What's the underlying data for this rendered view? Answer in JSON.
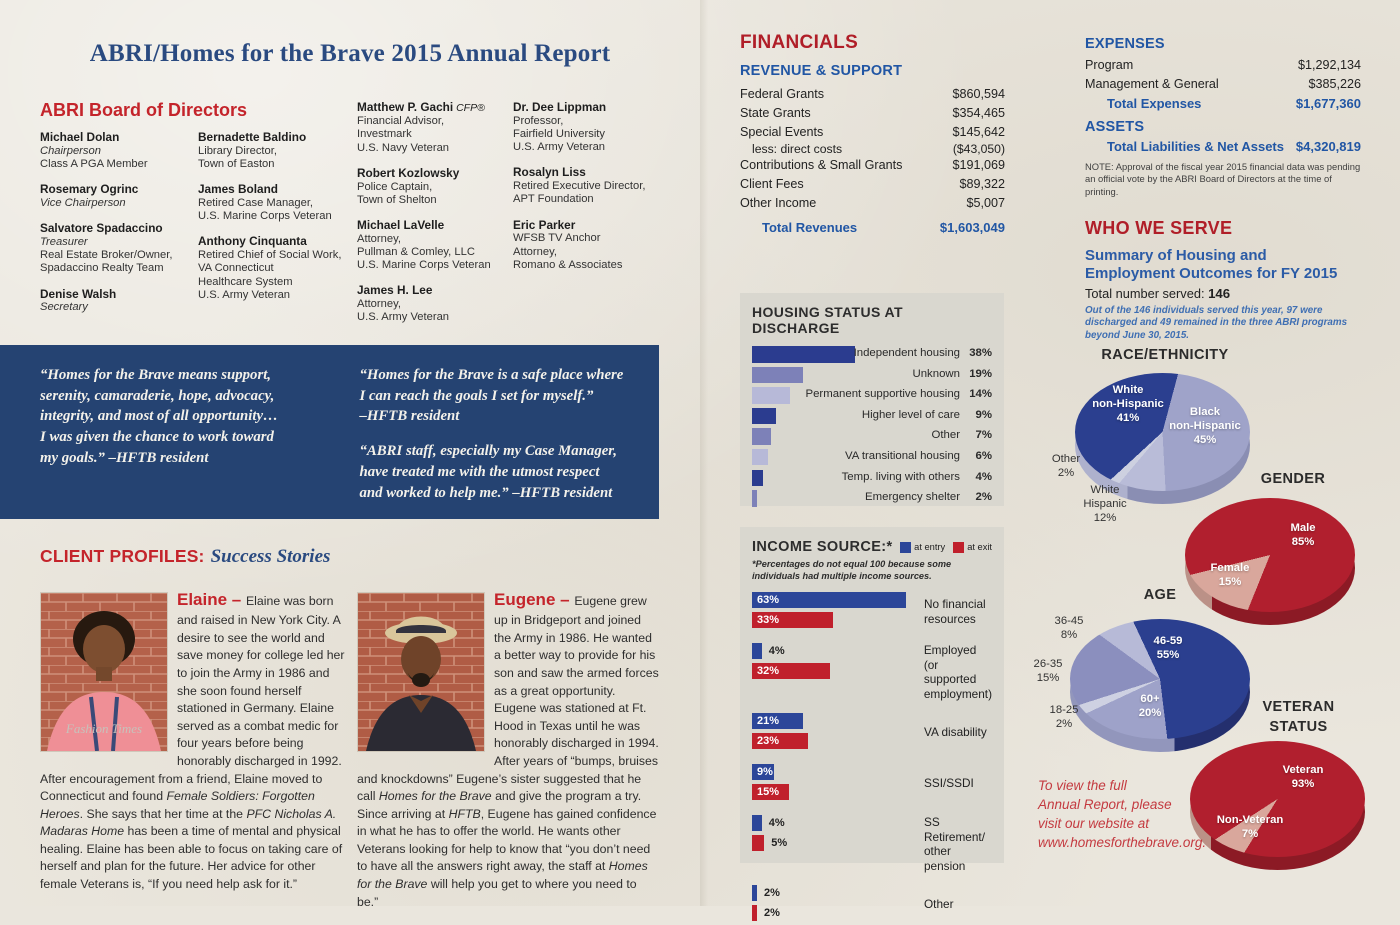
{
  "title": "ABRI/Homes for the Brave 2015 Annual Report",
  "colors": {
    "page_bg": "#eae6dd",
    "navy_box": "#254372",
    "title_blue": "#2a4a80",
    "heading_red": "#b01e28",
    "heading_blue": "#2156a4",
    "panel_bg": "#d9d7cf"
  },
  "board": {
    "heading": "ABRI Board of Directors",
    "columns": [
      [
        {
          "name": "Michael Dolan",
          "lines": [
            {
              "t": "Chairperson",
              "i": true
            },
            {
              "t": "Class A PGA Member"
            }
          ]
        },
        {
          "name": "Rosemary Ogrinc",
          "lines": [
            {
              "t": "Vice Chairperson",
              "i": true
            }
          ]
        },
        {
          "name": "Salvatore Spadaccino",
          "lines": [
            {
              "t": "Treasurer",
              "i": true
            },
            {
              "t": "Real Estate Broker/Owner,"
            },
            {
              "t": "Spadaccino Realty Team"
            }
          ]
        },
        {
          "name": "Denise Walsh",
          "lines": [
            {
              "t": "Secretary",
              "i": true
            }
          ]
        }
      ],
      [
        {
          "name": "Bernadette Baldino",
          "lines": [
            {
              "t": "Library Director,"
            },
            {
              "t": "Town of Easton"
            }
          ]
        },
        {
          "name": "James Boland",
          "lines": [
            {
              "t": "Retired Case Manager,"
            },
            {
              "t": "U.S. Marine Corps Veteran"
            }
          ]
        },
        {
          "name": "Anthony Cinquanta",
          "lines": [
            {
              "t": "Retired Chief of Social Work,"
            },
            {
              "t": "VA Connecticut"
            },
            {
              "t": "Healthcare System"
            },
            {
              "t": "U.S. Army Veteran"
            }
          ]
        }
      ],
      [
        {
          "name": "Matthew P. Gachi",
          "suffix": "CFP®",
          "lines": [
            {
              "t": "Financial Advisor,"
            },
            {
              "t": "Investmark"
            },
            {
              "t": "U.S. Navy Veteran"
            }
          ]
        },
        {
          "name": "Robert Kozlowsky",
          "lines": [
            {
              "t": "Police Captain,"
            },
            {
              "t": "Town of Shelton"
            }
          ]
        },
        {
          "name": "Michael LaVelle",
          "lines": [
            {
              "t": "Attorney,"
            },
            {
              "t": "Pullman & Comley, LLC"
            },
            {
              "t": "U.S. Marine Corps Veteran"
            }
          ]
        },
        {
          "name": "James H. Lee",
          "lines": [
            {
              "t": "Attorney,"
            },
            {
              "t": "U.S. Army Veteran"
            }
          ]
        }
      ],
      [
        {
          "name": "Dr. Dee Lippman",
          "lines": [
            {
              "t": "Professor,"
            },
            {
              "t": "Fairfield University"
            },
            {
              "t": "U.S. Army Veteran"
            }
          ]
        },
        {
          "name": "Rosalyn Liss",
          "lines": [
            {
              "t": "Retired Executive Director,"
            },
            {
              "t": "APT Foundation"
            }
          ]
        },
        {
          "name": "Eric Parker",
          "lines": [
            {
              "t": "WFSB TV Anchor"
            },
            {
              "t": "Attorney,"
            },
            {
              "t": "Romano & Associates"
            }
          ]
        }
      ]
    ]
  },
  "quotes": {
    "columns": [
      [
        "“Homes for the Brave means support,\nserenity, camaraderie, hope, advocacy,\nintegrity, and most of all opportunity…\nI was given the chance to work toward\nmy goals.” –HFTB resident"
      ],
      [
        "“Homes for the Brave is a safe place where\nI can reach the goals I set for myself.”\n–HFTB resident",
        "“ABRI staff, especially my Case Manager,\nhave treated me with the utmost respect\nand worked to help me.” –HFTB resident"
      ]
    ]
  },
  "profiles": {
    "heading_red": "CLIENT PROFILES:",
    "heading_italic": "Success Stories",
    "people": [
      {
        "name": "Elaine",
        "dash": "–",
        "segments": [
          {
            "t": "Elaine was born and raised in New York City. A desire to see the world and save money for college led her to join the Army in 1986 and she soon found herself stationed in Germany. Elaine served as a combat medic for four years before being honorably discharged in 1992. After encouragement from a friend, Elaine moved to Connecticut and found "
          },
          {
            "t": "Female Soldiers: Forgotten Heroes",
            "i": true
          },
          {
            "t": ". She says that her time at the "
          },
          {
            "t": "PFC Nicholas A. Madaras Home",
            "i": true
          },
          {
            "t": " has been a time of mental and physical healing. Elaine has been able to focus on taking care of herself and plan for the future. Her advice for other female Veterans is, “If you need help ask for it.”"
          }
        ]
      },
      {
        "name": "Eugene",
        "dash": "–",
        "segments": [
          {
            "t": "Eugene grew up in Bridgeport and joined the Army in 1986. He wanted a better way to provide for his son and saw the armed forces as a great opportunity. Eugene was stationed at Ft. Hood in Texas until he was honorably discharged in 1994. After years of “bumps, bruises and knockdowns” Eugene’s sister suggested that he call "
          },
          {
            "t": "Homes for the Brave",
            "i": true
          },
          {
            "t": " and give the program a try. Since arriving at "
          },
          {
            "t": "HFTB",
            "i": true
          },
          {
            "t": ", Eugene has gained confidence in what he has to offer the world. He wants other Veterans looking for help to know that “you don’t need to have all the answers right away, the staff at "
          },
          {
            "t": "Homes for the Brave",
            "i": true
          },
          {
            "t": " will help you get to where you need to be.”"
          }
        ]
      }
    ]
  },
  "financials": {
    "heading": "FINANCIALS",
    "revenue": {
      "heading": "REVENUE & SUPPORT",
      "rows": [
        {
          "label": "Federal Grants",
          "value": "$860,594"
        },
        {
          "label": "State Grants",
          "value": "$354,465"
        },
        {
          "label": "Special Events",
          "value": "$145,642",
          "sub_label": "less: direct costs",
          "sub_value": "($43,050)"
        },
        {
          "label": "Contributions & Small Grants",
          "value": "$191,069"
        },
        {
          "label": "Client Fees",
          "value": "$89,322"
        },
        {
          "label": "Other Income",
          "value": "$5,007"
        }
      ],
      "total": {
        "label": "Total Revenues",
        "value": "$1,603,049"
      }
    },
    "expenses": {
      "heading": "EXPENSES",
      "rows": [
        {
          "label": "Program",
          "value": "$1,292,134"
        },
        {
          "label": "Management & General",
          "value": "$385,226"
        }
      ],
      "total": {
        "label": "Total Expenses",
        "value": "$1,677,360"
      }
    },
    "assets": {
      "heading": "ASSETS",
      "total": {
        "label": "Total Liabilities & Net Assets",
        "value": "$4,320,819"
      }
    },
    "note": "NOTE: Approval of the fiscal year 2015 financial data was pending an official vote by the ABRI Board of Directors at the time of printing."
  },
  "who_we_serve": {
    "heading": "WHO WE SERVE",
    "subheading": "Summary of Housing and\nEmployment Outcomes for FY 2015",
    "total_label": "Total number served: ",
    "total_value": "146",
    "note": "Out of the 146 individuals served this year, 97 were discharged and 49 remained in the three ABRI programs beyond June 30, 2015."
  },
  "footer_cta": "To view the full\nAnnual Report, please\nvisit our website at\nwww.homesforthebrave.org.",
  "chart_data": [
    {
      "id": "housing",
      "type": "bar",
      "title": "HOUSING STATUS AT DISCHARGE",
      "categories": [
        "Independent housing",
        "Unknown",
        "Permanent supportive housing",
        "Higher level of care",
        "Other",
        "VA transitional housing",
        "Temp. living with others",
        "Emergency shelter"
      ],
      "values": [
        38,
        19,
        14,
        9,
        7,
        6,
        4,
        2
      ],
      "value_suffix": "%",
      "xlim": [
        0,
        40
      ],
      "palette": [
        "#2b3c8f",
        "#7d81b8",
        "#b7b9d8"
      ],
      "orientation": "horizontal"
    },
    {
      "id": "income",
      "type": "grouped_bar",
      "title": "INCOME SOURCE:*",
      "footnote": "*Percentages do not equal 100 because some individuals had multiple income sources.",
      "legend": [
        {
          "label": "at entry",
          "color": "#2c4699"
        },
        {
          "label": "at exit",
          "color": "#c0202c"
        }
      ],
      "categories": [
        "No financial resources",
        "Employed (or supported employment)",
        "VA disability",
        "SSI/SSDI",
        "SS Retirement/ other pension",
        "Other"
      ],
      "series": [
        {
          "name": "at entry",
          "values": [
            63,
            4,
            21,
            9,
            4,
            2
          ]
        },
        {
          "name": "at exit",
          "values": [
            33,
            32,
            23,
            15,
            5,
            2
          ]
        }
      ],
      "value_suffix": "%",
      "xlim": [
        0,
        70
      ],
      "orientation": "horizontal"
    },
    {
      "id": "race",
      "type": "pie",
      "title": "RACE/ETHNICITY",
      "start_angle": 15,
      "slices": [
        {
          "label": "Black\nnon-Hispanic",
          "pct": 45,
          "color": "#9fa3c9",
          "inside": true
        },
        {
          "label": "White\nHispanic",
          "pct": 12,
          "color": "#b9bcd8",
          "inside": false
        },
        {
          "label": "Other",
          "pct": 2,
          "color": "#cdd0e0",
          "inside": false
        },
        {
          "label": "White\nnon-Hispanic",
          "pct": 41,
          "color": "#2b3f8f",
          "inside": true
        }
      ]
    },
    {
      "id": "gender",
      "type": "pie",
      "title": "GENDER",
      "start_angle": 256,
      "slices": [
        {
          "label": "Male",
          "pct": 85,
          "color": "#b11f2e",
          "inside": true
        },
        {
          "label": "Female",
          "pct": 15,
          "color": "#d9a79c",
          "inside": true
        }
      ]
    },
    {
      "id": "age",
      "type": "pie",
      "title": "AGE",
      "start_angle": 335,
      "slices": [
        {
          "label": "46-59",
          "pct": 55,
          "color": "#2b3f8f",
          "inside": true
        },
        {
          "label": "60+",
          "pct": 20,
          "color": "#9ea2c9",
          "inside": true
        },
        {
          "label": "18-25",
          "pct": 2,
          "color": "#ced1e2",
          "inside": false
        },
        {
          "label": "26-35",
          "pct": 15,
          "color": "#8b8fbe",
          "inside": false
        },
        {
          "label": "36-45",
          "pct": 8,
          "color": "#b7bad7",
          "inside": false
        }
      ]
    },
    {
      "id": "veteran",
      "type": "pie",
      "title": "VETERAN\nSTATUS",
      "start_angle": 237,
      "slices": [
        {
          "label": "Veteran",
          "pct": 93,
          "color": "#b11f2e",
          "inside": true
        },
        {
          "label": "Non-Veteran",
          "pct": 7,
          "color": "#d9a79c",
          "inside": true
        }
      ]
    }
  ]
}
